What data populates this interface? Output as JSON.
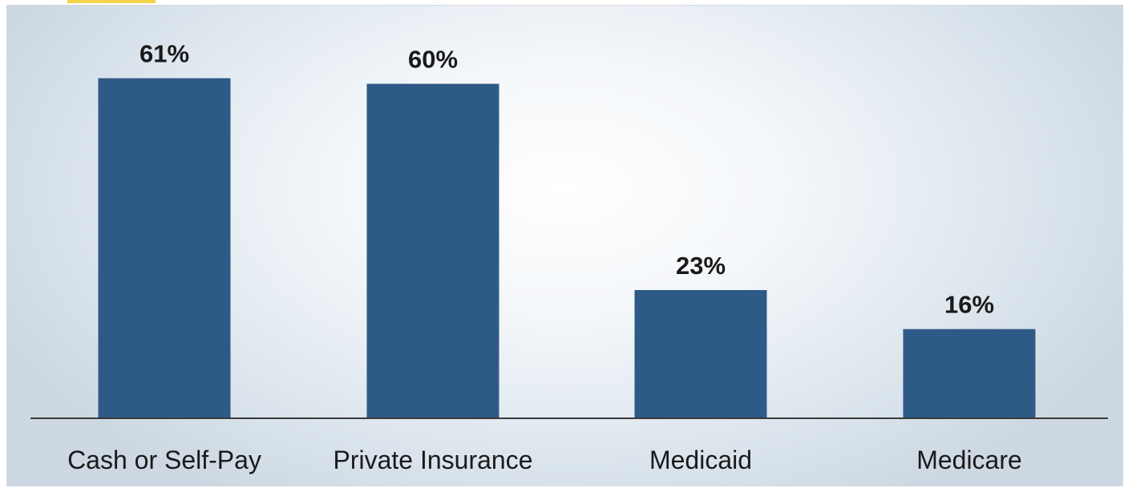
{
  "chart_data": {
    "type": "bar",
    "categories": [
      "Cash or Self-Pay",
      "Private Insurance",
      "Medicaid",
      "Medicare"
    ],
    "values": [
      61,
      60,
      23,
      16
    ],
    "data_labels": [
      "61%",
      "60%",
      "23%",
      "16%"
    ],
    "title": "",
    "xlabel": "",
    "ylabel": "",
    "ylim": [
      0,
      70
    ],
    "grid": false,
    "legend": "none",
    "bar_color": "#2e5a87"
  }
}
